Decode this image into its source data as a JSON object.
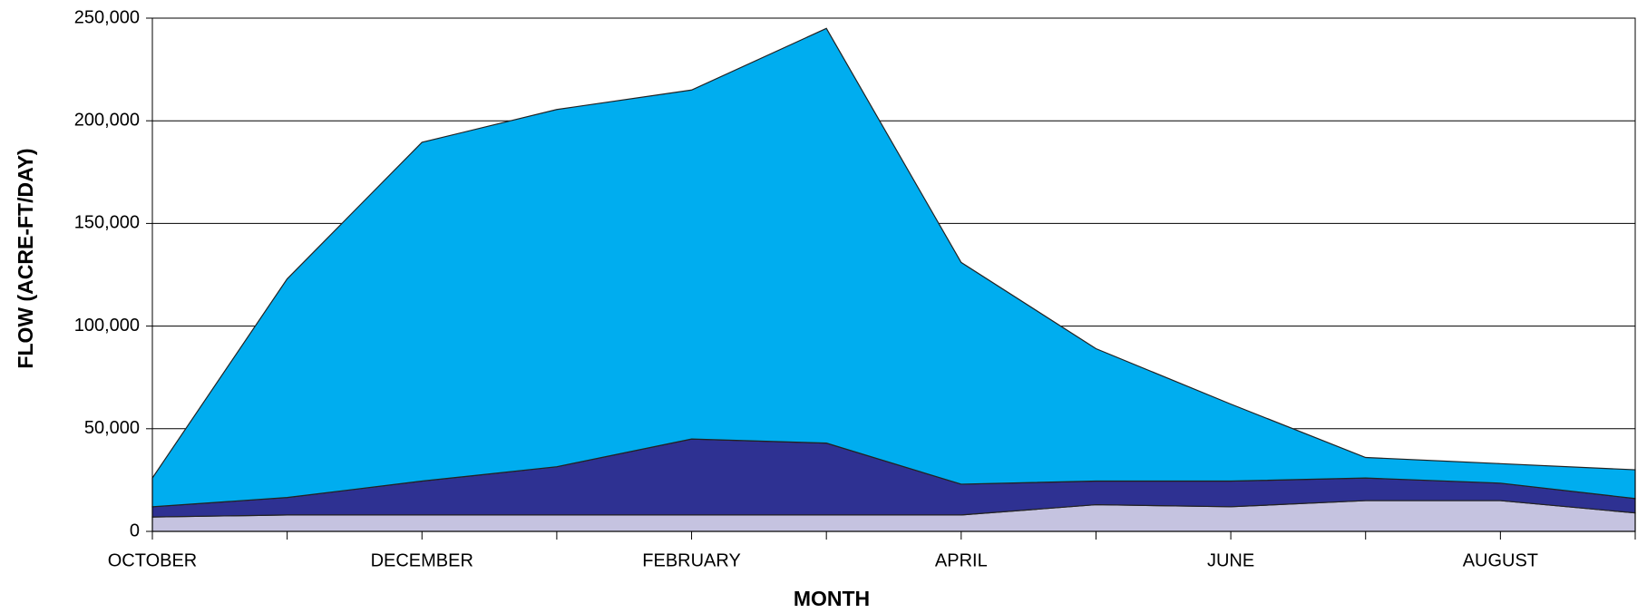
{
  "chart_data": {
    "type": "stacked_area",
    "x_label": "MONTH",
    "y_label": "FLOW (ACRE-FT/DAY)",
    "categories": [
      "OCTOBER",
      null,
      "DECEMBER",
      null,
      "FEBRUARY",
      null,
      "APRIL",
      null,
      "JUNE",
      null,
      "AUGUST",
      null
    ],
    "series": [
      {
        "color": "#c5c3e0",
        "values": [
          7000,
          8000,
          8000,
          8000,
          8000,
          8000,
          8000,
          13000,
          12000,
          15000,
          15000,
          9000
        ]
      },
      {
        "color": "#2e3192",
        "values": [
          5000,
          8500,
          16500,
          23500,
          37000,
          35000,
          15000,
          11500,
          12500,
          11000,
          8500,
          7000
        ]
      },
      {
        "color": "#00adef",
        "values": [
          14000,
          106500,
          165000,
          174000,
          170000,
          202000,
          108000,
          64500,
          37500,
          10000,
          9500,
          14000
        ]
      }
    ],
    "ylim": [
      0,
      250000
    ],
    "yticks": [
      0,
      {
        "value": 50000,
        "label": "50,000"
      },
      {
        "value": 100000,
        "label": "100,000"
      },
      {
        "value": 150000,
        "label": "150,000"
      },
      {
        "value": 200000,
        "label": "200,000"
      },
      {
        "value": 250000,
        "label": "250,000"
      }
    ],
    "grid": true
  }
}
